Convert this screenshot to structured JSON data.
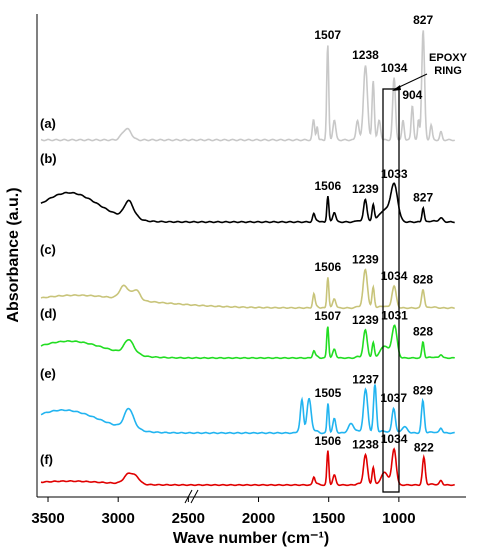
{
  "chart_data": {
    "type": "line",
    "xlabel": "Wave number (cm⁻¹)",
    "ylabel": "Absorbance (a.u.)",
    "xlim": [
      3550,
      600
    ],
    "x_reversed": true,
    "x_ticks": [
      3500,
      3000,
      2500,
      2000,
      1500,
      1000
    ],
    "x_tick_labels": [
      "3500",
      "3000",
      "2500",
      "2000",
      "1500",
      "1000"
    ],
    "axis_break": "between 2000 and 1500 (//)",
    "grid": false,
    "annotations": [
      {
        "text_line1": "EPOXY",
        "text_line2": "RING",
        "points_to": 904
      },
      {
        "box_around_wavenumber": 904
      }
    ],
    "series": [
      {
        "name": "(a)",
        "color": "#c8c8c8",
        "peaks": [
          {
            "x": 1507,
            "label": "1507"
          },
          {
            "x": 1238,
            "label": "1238"
          },
          {
            "x": 1034,
            "label": "1034"
          },
          {
            "x": 904,
            "label": "904"
          },
          {
            "x": 827,
            "label": "827"
          }
        ]
      },
      {
        "name": "(b)",
        "color": "#000000",
        "peaks": [
          {
            "x": 1506,
            "label": "1506"
          },
          {
            "x": 1239,
            "label": "1239"
          },
          {
            "x": 1033,
            "label": "1033"
          },
          {
            "x": 827,
            "label": "827"
          }
        ]
      },
      {
        "name": "(c)",
        "color": "#c8c47a",
        "peaks": [
          {
            "x": 1506,
            "label": "1506"
          },
          {
            "x": 1239,
            "label": "1239"
          },
          {
            "x": 1034,
            "label": "1034"
          },
          {
            "x": 828,
            "label": "828"
          }
        ]
      },
      {
        "name": "(d)",
        "color": "#22dd22",
        "peaks": [
          {
            "x": 1507,
            "label": "1507"
          },
          {
            "x": 1239,
            "label": "1239"
          },
          {
            "x": 1031,
            "label": "1031"
          },
          {
            "x": 828,
            "label": "828"
          }
        ]
      },
      {
        "name": "(e)",
        "color": "#22b4f0",
        "peaks": [
          {
            "x": 1505,
            "label": "1505"
          },
          {
            "x": 1237,
            "label": "1237"
          },
          {
            "x": 1037,
            "label": "1037"
          },
          {
            "x": 829,
            "label": "829"
          }
        ]
      },
      {
        "name": "(f)",
        "color": "#e00000",
        "peaks": [
          {
            "x": 1506,
            "label": "1506"
          },
          {
            "x": 1238,
            "label": "1238"
          },
          {
            "x": 1034,
            "label": "1034"
          },
          {
            "x": 822,
            "label": "822"
          }
        ]
      }
    ]
  }
}
